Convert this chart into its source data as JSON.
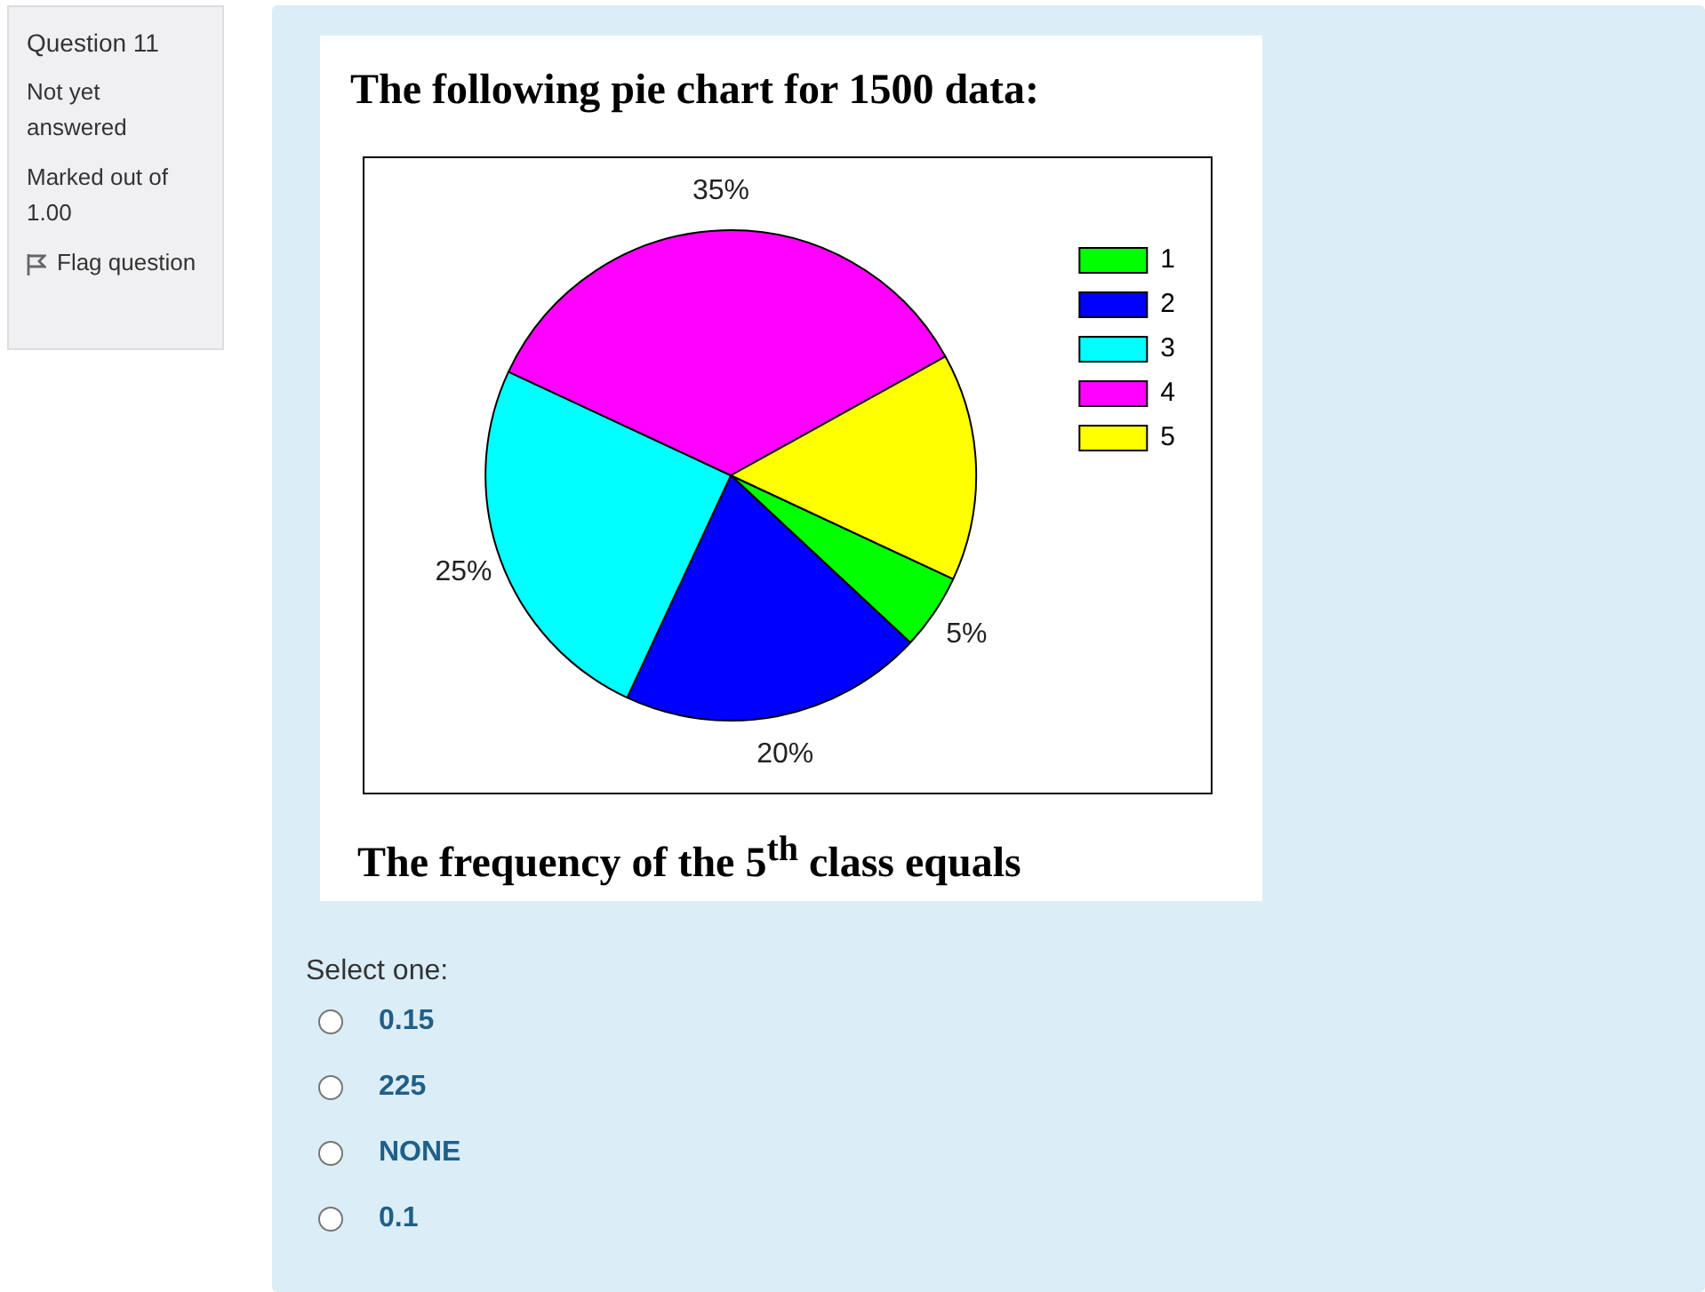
{
  "chart_data": {
    "type": "pie",
    "title": "The following pie chart for 1500 data:",
    "categories": [
      "1",
      "2",
      "3",
      "4",
      "5"
    ],
    "values": [
      5,
      20,
      25,
      35,
      15
    ],
    "colors": [
      "#00ff00",
      "#0000ff",
      "#00ffff",
      "#ff00ff",
      "#ffff00"
    ],
    "value_labels": [
      "5%",
      "20%",
      "25%",
      "35%",
      null
    ],
    "legend": "top right",
    "annotations": [
      "The frequency of the 5$^{th}$ class equals",
      "Question 11",
      "Not yet answered",
      "Marked out of 1.00",
      "Flag question",
      "Select one:",
      "0.15",
      "225",
      "NONE",
      "0.1"
    ]
  }
}
